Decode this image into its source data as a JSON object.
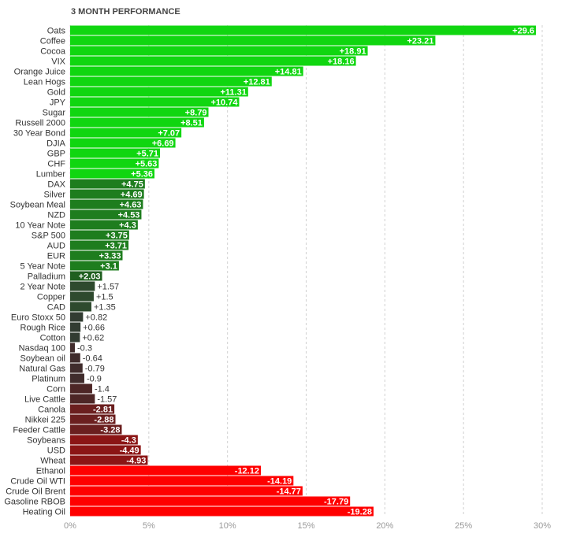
{
  "chart_data": {
    "type": "bar",
    "orientation": "horizontal",
    "title": "3 MONTH PERFORMANCE",
    "categories": [
      "Oats",
      "Coffee",
      "Cocoa",
      "VIX",
      "Orange Juice",
      "Lean Hogs",
      "Gold",
      "JPY",
      "Sugar",
      "Russell 2000",
      "30 Year Bond",
      "DJIA",
      "GBP",
      "CHF",
      "Lumber",
      "DAX",
      "Silver",
      "Soybean Meal",
      "NZD",
      "10 Year Note",
      "S&P 500",
      "AUD",
      "EUR",
      "5 Year Note",
      "Palladium",
      "2 Year Note",
      "Copper",
      "CAD",
      "Euro Stoxx 50",
      "Rough Rice",
      "Cotton",
      "Nasdaq 100",
      "Soybean oil",
      "Natural Gas",
      "Platinum",
      "Corn",
      "Live Cattle",
      "Canola",
      "Nikkei 225",
      "Feeder Cattle",
      "Soybeans",
      "USD",
      "Wheat",
      "Ethanol",
      "Crude Oil WTI",
      "Crude Oil Brent",
      "Gasoline RBOB",
      "Heating Oil"
    ],
    "values": [
      29.6,
      23.21,
      18.91,
      18.16,
      14.81,
      12.81,
      11.31,
      10.74,
      8.79,
      8.51,
      7.07,
      6.69,
      5.71,
      5.63,
      5.36,
      4.75,
      4.69,
      4.63,
      4.53,
      4.3,
      3.75,
      3.71,
      3.33,
      3.1,
      2.03,
      1.57,
      1.5,
      1.35,
      0.82,
      0.66,
      0.62,
      -0.3,
      -0.64,
      -0.79,
      -0.9,
      -1.4,
      -1.57,
      -2.81,
      -2.88,
      -3.28,
      -4.3,
      -4.49,
      -4.93,
      -12.12,
      -14.19,
      -14.77,
      -17.79,
      -19.28
    ],
    "value_labels": [
      "+29.6",
      "+23.21",
      "+18.91",
      "+18.16",
      "+14.81",
      "+12.81",
      "+11.31",
      "+10.74",
      "+8.79",
      "+8.51",
      "+7.07",
      "+6.69",
      "+5.71",
      "+5.63",
      "+5.36",
      "+4.75",
      "+4.69",
      "+4.63",
      "+4.53",
      "+4.3",
      "+3.75",
      "+3.71",
      "+3.33",
      "+3.1",
      "+2.03",
      "+1.57",
      "+1.5",
      "+1.35",
      "+0.82",
      "+0.66",
      "+0.62",
      "-0.3",
      "-0.64",
      "-0.79",
      "-0.9",
      "-1.4",
      "-1.57",
      "-2.81",
      "-2.88",
      "-3.28",
      "-4.3",
      "-4.49",
      "-4.93",
      "-12.12",
      "-14.19",
      "-14.77",
      "-17.79",
      "-19.28"
    ],
    "colors": [
      "#10d610",
      "#10d610",
      "#10d610",
      "#10d610",
      "#10d610",
      "#10d610",
      "#10d610",
      "#10d610",
      "#10d610",
      "#10d610",
      "#10d610",
      "#10d610",
      "#10d610",
      "#10d610",
      "#10d610",
      "#1e7d1e",
      "#1e7d1e",
      "#1e7d1e",
      "#1e7d1e",
      "#1e7d1e",
      "#1e7d1e",
      "#1e7d1e",
      "#1e7d1e",
      "#1e7d1e",
      "#1f5f1f",
      "#2e4a2e",
      "#2e4a2e",
      "#2e4a2e",
      "#323c32",
      "#323c32",
      "#323c32",
      "#402c2c",
      "#402c2c",
      "#402c2c",
      "#402c2c",
      "#4d2626",
      "#4d2626",
      "#6b1f1f",
      "#6b1f1f",
      "#6b1f1f",
      "#8b1515",
      "#8b1515",
      "#8b1515",
      "#ff0000",
      "#ff0000",
      "#ff0000",
      "#ff0000",
      "#ff0000"
    ],
    "xlim": [
      0,
      30
    ],
    "xticks": [
      {
        "value": 0,
        "label": "0%"
      },
      {
        "value": 5,
        "label": "5%"
      },
      {
        "value": 10,
        "label": "10%"
      },
      {
        "value": 15,
        "label": "15%"
      },
      {
        "value": 20,
        "label": "20%"
      },
      {
        "value": 25,
        "label": "25%"
      },
      {
        "value": 30,
        "label": "30%"
      }
    ],
    "grid": true
  }
}
